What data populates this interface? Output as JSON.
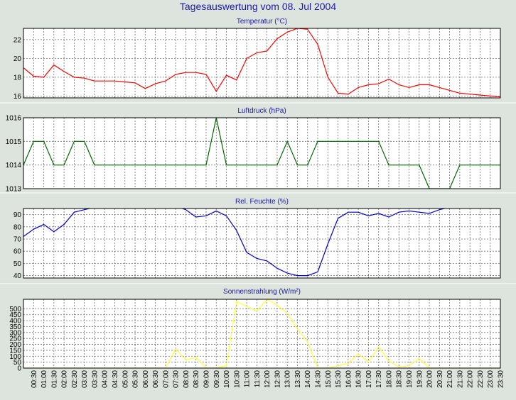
{
  "page": {
    "title": "Tagesauswertung vom 08. Jul 2004"
  },
  "x_tick_labels": [
    "00:30",
    "01:00",
    "01:30",
    "02:00",
    "02:30",
    "03:00",
    "03:30",
    "04:00",
    "04:30",
    "05:00",
    "05:30",
    "06:00",
    "06:30",
    "07:00",
    "07:30",
    "08:00",
    "08:30",
    "09:00",
    "09:30",
    "10:00",
    "10:30",
    "11:00",
    "11:30",
    "12:00",
    "12:30",
    "13:00",
    "13:30",
    "14:00",
    "14:30",
    "15:00",
    "15:30",
    "16:00",
    "16:30",
    "17:00",
    "17:30",
    "18:00",
    "18:30",
    "19:00",
    "19:30",
    "20:00",
    "20:30",
    "21:00",
    "21:30",
    "22:00",
    "22:30",
    "23:00",
    "23:30"
  ],
  "chart_data": [
    {
      "type": "line",
      "title": "Temperatur (°C)",
      "color": "#ff0000",
      "xlim": [
        "00:00",
        "23:30"
      ],
      "ylim": [
        15.8,
        23.2
      ],
      "yticks": [
        16,
        18,
        20,
        22
      ],
      "yticks_labels": [
        "16",
        "18",
        "20",
        "22"
      ],
      "grid": true,
      "x": [
        "00:00",
        "00:30",
        "01:00",
        "01:30",
        "02:00",
        "02:30",
        "03:00",
        "03:30",
        "04:00",
        "04:30",
        "05:00",
        "05:30",
        "06:00",
        "06:30",
        "07:00",
        "07:30",
        "08:00",
        "08:30",
        "09:00",
        "09:30",
        "10:00",
        "10:30",
        "11:00",
        "11:30",
        "12:00",
        "12:30",
        "13:00",
        "13:30",
        "14:00",
        "14:30",
        "15:00",
        "15:30",
        "16:00",
        "16:30",
        "17:00",
        "17:30",
        "18:00",
        "18:30",
        "19:00",
        "19:30",
        "20:00",
        "20:30",
        "21:00",
        "21:30",
        "22:00",
        "22:30",
        "23:00",
        "23:30"
      ],
      "values": [
        19.0,
        18.1,
        18.0,
        19.3,
        18.6,
        18.0,
        17.9,
        17.6,
        17.6,
        17.6,
        17.5,
        17.4,
        16.8,
        17.3,
        17.6,
        18.3,
        18.5,
        18.5,
        18.3,
        16.5,
        18.2,
        17.7,
        20.0,
        20.6,
        20.8,
        22.1,
        22.8,
        23.2,
        23.1,
        21.5,
        18.0,
        16.3,
        16.2,
        16.9,
        17.2,
        17.3,
        17.8,
        17.2,
        16.9,
        17.2,
        17.2,
        16.9,
        16.6,
        16.3,
        16.2,
        16.1,
        16.0,
        15.9
      ]
    },
    {
      "type": "line",
      "title": "Luftdruck (hPa)",
      "color": "#006400",
      "xlim": [
        "00:00",
        "23:30"
      ],
      "ylim": [
        1013,
        1016
      ],
      "yticks": [
        1013,
        1014,
        1015,
        1016
      ],
      "yticks_labels": [
        "1013",
        "1014",
        "1015",
        "1016"
      ],
      "grid": true,
      "x": [
        "00:00",
        "00:30",
        "01:00",
        "01:30",
        "02:00",
        "02:30",
        "03:00",
        "03:30",
        "04:00",
        "04:30",
        "05:00",
        "05:30",
        "06:00",
        "06:30",
        "07:00",
        "07:30",
        "08:00",
        "08:30",
        "09:00",
        "09:30",
        "10:00",
        "10:30",
        "11:00",
        "11:30",
        "12:00",
        "12:30",
        "13:00",
        "13:30",
        "14:00",
        "14:30",
        "15:00",
        "15:30",
        "16:00",
        "16:30",
        "17:00",
        "17:30",
        "18:00",
        "18:30",
        "19:00",
        "19:30",
        "20:00",
        "20:30",
        "21:00",
        "21:30",
        "22:00",
        "22:30",
        "23:00",
        "23:30"
      ],
      "values": [
        1014,
        1015,
        1015,
        1014,
        1014,
        1015,
        1015,
        1014,
        1014,
        1014,
        1014,
        1014,
        1014,
        1014,
        1014,
        1014,
        1014,
        1014,
        1014,
        1016,
        1014,
        1014,
        1014,
        1014,
        1014,
        1014,
        1015,
        1014,
        1014,
        1015,
        1015,
        1015,
        1015,
        1015,
        1015,
        1015,
        1014,
        1014,
        1014,
        1014,
        1013,
        1013,
        1013,
        1014,
        1014,
        1014,
        1014,
        1014
      ]
    },
    {
      "type": "line",
      "title": "Rel. Feuchte (%)",
      "color": "#0000cc",
      "xlim": [
        "00:00",
        "23:30"
      ],
      "ylim": [
        38,
        95
      ],
      "yticks": [
        40,
        50,
        60,
        70,
        80,
        90
      ],
      "yticks_labels": [
        "40",
        "50",
        "60",
        "70",
        "80",
        "90"
      ],
      "grid": true,
      "x": [
        "00:00",
        "00:30",
        "01:00",
        "01:30",
        "02:00",
        "02:30",
        "03:00",
        "03:30",
        "04:00",
        "04:30",
        "05:00",
        "05:30",
        "06:00",
        "06:30",
        "07:00",
        "07:30",
        "08:00",
        "08:30",
        "09:00",
        "09:30",
        "10:00",
        "10:30",
        "11:00",
        "11:30",
        "12:00",
        "12:30",
        "13:00",
        "13:30",
        "14:00",
        "14:30",
        "15:00",
        "15:30",
        "16:00",
        "16:30",
        "17:00",
        "17:30",
        "18:00",
        "18:30",
        "19:00",
        "19:30",
        "20:00",
        "20:30",
        "21:00",
        "21:30",
        "22:00",
        "22:30",
        "23:00",
        "23:30"
      ],
      "values": [
        72,
        78,
        82,
        76,
        82,
        92,
        94,
        96,
        97,
        98,
        98,
        98,
        98,
        98,
        98,
        97,
        94,
        88,
        89,
        93,
        89,
        77,
        59,
        54,
        52,
        46,
        42,
        40,
        40,
        43,
        66,
        87,
        92,
        92,
        89,
        91,
        88,
        92,
        93,
        92,
        91,
        94,
        96,
        97,
        97,
        97,
        97,
        97
      ]
    },
    {
      "type": "line",
      "title": "Sonnenstrahlung (W/m²)",
      "color": "#ffff33",
      "xlim": [
        "00:00",
        "23:30"
      ],
      "ylim": [
        0,
        580
      ],
      "yticks": [
        0,
        50,
        100,
        150,
        200,
        250,
        300,
        350,
        400,
        450,
        500
      ],
      "yticks_labels": [
        "0",
        "50",
        "100",
        "150",
        "200",
        "250",
        "300",
        "350",
        "400",
        "450",
        "500"
      ],
      "grid": true,
      "x": [
        "00:00",
        "00:30",
        "01:00",
        "01:30",
        "02:00",
        "02:30",
        "03:00",
        "03:30",
        "04:00",
        "04:30",
        "05:00",
        "05:30",
        "06:00",
        "06:30",
        "07:00",
        "07:30",
        "08:00",
        "08:30",
        "09:00",
        "09:30",
        "10:00",
        "10:30",
        "11:00",
        "11:30",
        "12:00",
        "12:30",
        "13:00",
        "13:30",
        "14:00",
        "14:30",
        "15:00",
        "15:30",
        "16:00",
        "16:30",
        "17:00",
        "17:30",
        "18:00",
        "18:30",
        "19:00",
        "19:30",
        "20:00",
        "20:30",
        "21:00",
        "21:30",
        "22:00",
        "22:30",
        "23:00",
        "23:30"
      ],
      "values": [
        0,
        0,
        0,
        0,
        0,
        0,
        0,
        0,
        0,
        0,
        0,
        0,
        0,
        0,
        0,
        160,
        70,
        90,
        0,
        0,
        20,
        560,
        520,
        480,
        580,
        530,
        460,
        330,
        220,
        0,
        0,
        20,
        40,
        120,
        50,
        180,
        60,
        10,
        20,
        80,
        0,
        0,
        0,
        0,
        0,
        0,
        0,
        0
      ]
    }
  ]
}
